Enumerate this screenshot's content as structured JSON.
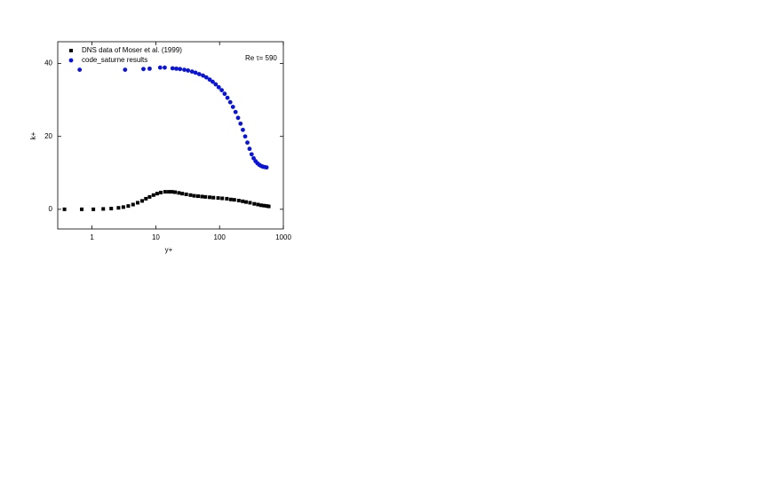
{
  "chart_data": {
    "type": "scatter",
    "x_label": "y+",
    "y_label": "k+",
    "annotation": "Re τ= 590",
    "log_x": true,
    "xlim": [
      0.29,
      1000
    ],
    "xticks": [
      1,
      10,
      100,
      1000
    ],
    "ylim": [
      -5.4,
      46
    ],
    "yticks": [
      0,
      20,
      40
    ],
    "series": [
      {
        "name": "DNS data of Moser et al. (1999)",
        "color": "#000000",
        "marker": "square",
        "x": [
          0.37,
          0.69,
          1.05,
          1.5,
          2.0,
          2.6,
          3.1,
          3.7,
          4.4,
          5.2,
          6.1,
          7.0,
          8.0,
          9.2,
          10.5,
          12,
          14,
          16,
          18,
          20,
          23,
          26,
          30,
          35,
          40,
          46,
          53,
          60,
          70,
          80,
          95,
          110,
          130,
          150,
          170,
          200,
          230,
          260,
          300,
          350,
          400,
          450,
          500,
          550,
          590
        ],
        "values": [
          0.0,
          0.0,
          0.0,
          0.1,
          0.2,
          0.4,
          0.6,
          0.9,
          1.3,
          1.8,
          2.3,
          2.9,
          3.4,
          3.9,
          4.3,
          4.6,
          4.8,
          4.8,
          4.8,
          4.7,
          4.5,
          4.3,
          4.1,
          3.9,
          3.7,
          3.6,
          3.5,
          3.4,
          3.3,
          3.2,
          3.1,
          3.0,
          2.9,
          2.7,
          2.6,
          2.4,
          2.2,
          2.0,
          1.8,
          1.5,
          1.3,
          1.1,
          1.0,
          0.9,
          0.8
        ]
      },
      {
        "name": "code_saturne results",
        "color": "#0a14d8",
        "marker": "circle",
        "x": [
          0.64,
          3.3,
          6.4,
          8,
          11.7,
          13.8,
          18.3,
          21,
          24,
          28,
          32,
          37,
          42,
          48,
          55,
          62,
          70,
          78,
          87,
          97,
          108,
          120,
          133,
          147,
          162,
          178,
          195,
          213,
          232,
          252,
          273,
          295,
          318,
          342,
          367,
          393,
          420,
          448,
          477,
          507,
          545
        ],
        "values": [
          38.3,
          38.3,
          38.5,
          38.6,
          38.9,
          38.9,
          38.7,
          38.6,
          38.5,
          38.3,
          38.1,
          37.8,
          37.5,
          37.1,
          36.7,
          36.2,
          35.6,
          35.0,
          34.3,
          33.5,
          32.7,
          31.7,
          30.6,
          29.4,
          28.1,
          26.7,
          25.1,
          23.5,
          21.8,
          20.0,
          18.3,
          16.6,
          15.1,
          14.0,
          13.2,
          12.6,
          12.2,
          11.9,
          11.7,
          11.6,
          11.5
        ]
      }
    ]
  }
}
